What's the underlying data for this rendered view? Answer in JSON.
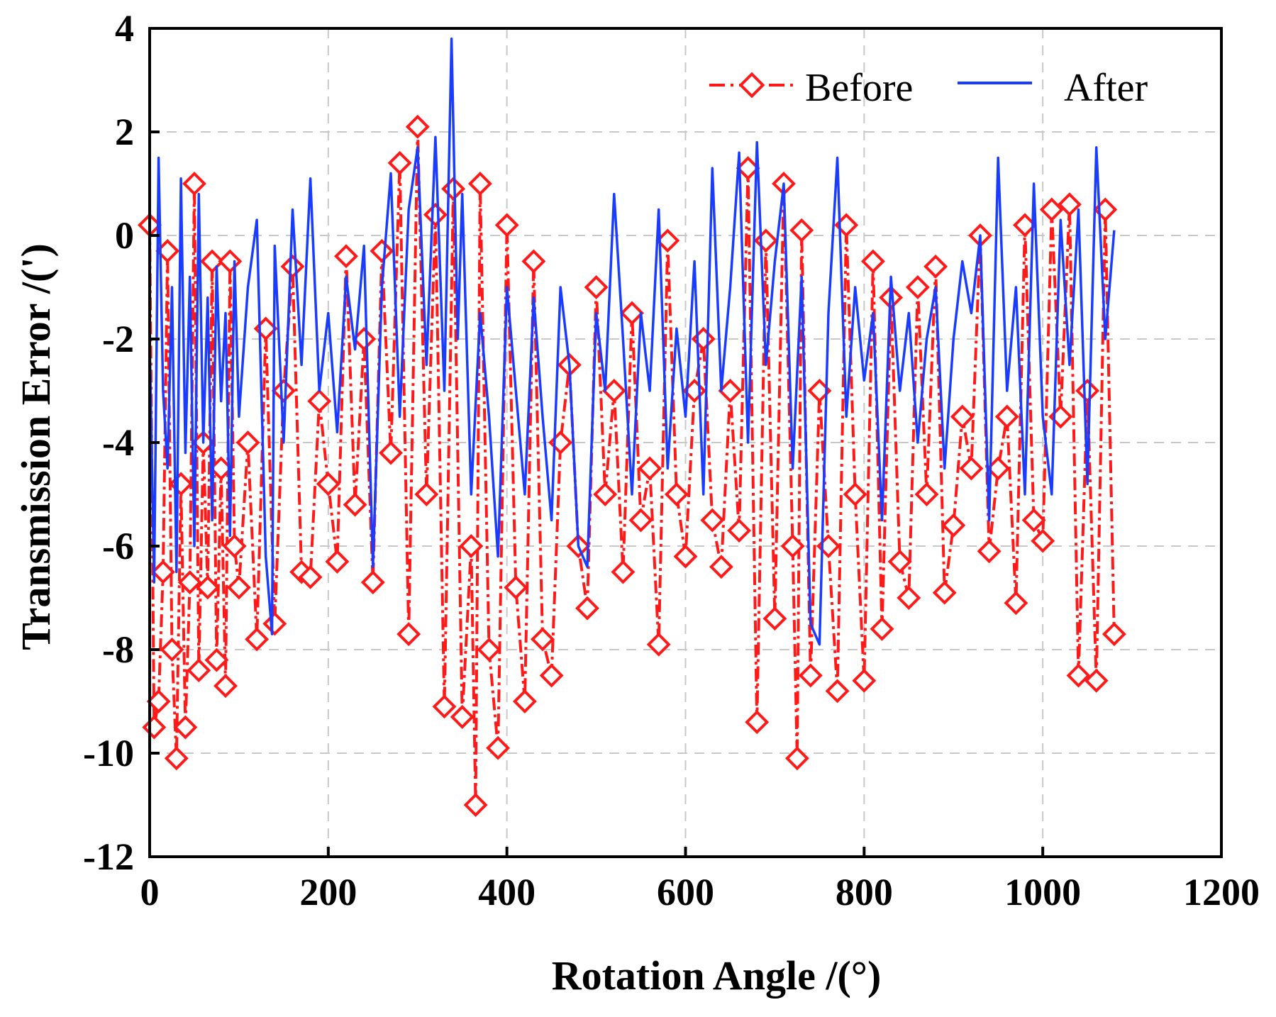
{
  "chart_data": {
    "type": "line",
    "title": "",
    "xlabel": "Rotation Angle   /(°)",
    "ylabel": "Transmission Error  /(')",
    "xlim": [
      0,
      1200
    ],
    "ylim": [
      -12,
      4
    ],
    "xticks": [
      0,
      200,
      400,
      600,
      800,
      1000,
      1200
    ],
    "yticks": [
      -12,
      -10,
      -8,
      -6,
      -4,
      -2,
      0,
      2,
      4
    ],
    "grid": true,
    "legend_position": "top-right",
    "series": [
      {
        "name": "Before",
        "color": "#ff1a1a",
        "style": "dash-dot with diamond markers",
        "x": [
          0,
          5,
          10,
          15,
          20,
          25,
          30,
          35,
          40,
          45,
          50,
          55,
          60,
          65,
          70,
          75,
          80,
          85,
          90,
          95,
          100,
          110,
          120,
          130,
          140,
          150,
          160,
          170,
          180,
          190,
          200,
          210,
          220,
          230,
          240,
          250,
          260,
          270,
          280,
          290,
          300,
          310,
          320,
          330,
          340,
          350,
          360,
          365,
          370,
          380,
          390,
          400,
          410,
          420,
          430,
          440,
          450,
          460,
          470,
          480,
          490,
          500,
          510,
          520,
          530,
          540,
          550,
          560,
          570,
          580,
          590,
          600,
          610,
          620,
          630,
          640,
          650,
          660,
          670,
          680,
          690,
          700,
          710,
          720,
          725,
          730,
          740,
          750,
          760,
          770,
          780,
          790,
          800,
          810,
          820,
          830,
          840,
          850,
          860,
          870,
          880,
          890,
          900,
          910,
          920,
          930,
          940,
          950,
          960,
          970,
          980,
          990,
          1000,
          1010,
          1020,
          1030,
          1040,
          1050,
          1060,
          1070,
          1080
        ],
        "y": [
          0.2,
          -9.5,
          -9.0,
          -6.5,
          -0.3,
          -8.0,
          -10.1,
          -4.8,
          -9.5,
          -6.7,
          1.0,
          -8.4,
          -4.0,
          -6.8,
          -0.5,
          -8.2,
          -4.5,
          -8.7,
          -0.5,
          -6.0,
          -6.8,
          -4.0,
          -7.8,
          -1.8,
          -7.5,
          -3.0,
          -0.6,
          -6.5,
          -6.6,
          -3.2,
          -4.8,
          -6.3,
          -0.4,
          -5.2,
          -2.0,
          -6.7,
          -0.3,
          -4.2,
          1.4,
          -7.7,
          2.1,
          -5.0,
          0.4,
          -9.1,
          0.9,
          -9.3,
          -6.0,
          -11.0,
          1.0,
          -8.0,
          -9.9,
          0.2,
          -6.8,
          -9.0,
          -0.5,
          -7.8,
          -8.5,
          -4.0,
          -2.5,
          -6.0,
          -7.2,
          -1.0,
          -5.0,
          -3.0,
          -6.5,
          -1.5,
          -5.5,
          -4.5,
          -7.9,
          -0.1,
          -5.0,
          -6.2,
          -3.0,
          -2.0,
          -5.5,
          -6.4,
          -3.0,
          -5.7,
          1.3,
          -9.4,
          -0.1,
          -7.4,
          1.0,
          -6.0,
          -10.1,
          0.1,
          -8.5,
          -3.0,
          -6.0,
          -8.8,
          0.2,
          -5.0,
          -8.6,
          -0.5,
          -7.6,
          -1.2,
          -6.3,
          -7.0,
          -1.0,
          -5.0,
          -0.6,
          -6.9,
          -5.6,
          -3.5,
          -4.5,
          0.0,
          -6.1,
          -4.5,
          -3.5,
          -7.1,
          0.2,
          -5.5,
          -5.9,
          0.5,
          -3.5,
          0.6,
          -8.5,
          -3.0,
          -8.6,
          0.5,
          -7.7
        ]
      },
      {
        "name": "After",
        "color": "#1a3cff",
        "style": "solid",
        "x": [
          0,
          5,
          10,
          15,
          20,
          25,
          30,
          35,
          40,
          45,
          50,
          55,
          60,
          65,
          70,
          75,
          80,
          85,
          90,
          95,
          100,
          110,
          120,
          130,
          137,
          140,
          150,
          160,
          170,
          180,
          190,
          200,
          210,
          220,
          230,
          240,
          250,
          260,
          270,
          280,
          290,
          300,
          310,
          320,
          330,
          338,
          345,
          350,
          360,
          370,
          380,
          390,
          400,
          410,
          420,
          430,
          440,
          450,
          460,
          470,
          480,
          490,
          500,
          510,
          520,
          530,
          540,
          550,
          560,
          570,
          580,
          590,
          600,
          610,
          620,
          630,
          640,
          650,
          660,
          670,
          680,
          690,
          700,
          710,
          720,
          730,
          740,
          750,
          760,
          770,
          780,
          790,
          800,
          810,
          820,
          830,
          840,
          850,
          860,
          870,
          880,
          890,
          900,
          910,
          920,
          930,
          940,
          950,
          960,
          970,
          980,
          990,
          1000,
          1010,
          1020,
          1030,
          1040,
          1050,
          1060,
          1070,
          1080
        ],
        "y": [
          -2.0,
          -6.7,
          1.5,
          -3.0,
          -4.5,
          -1.0,
          -6.5,
          1.1,
          -4.2,
          -0.8,
          -6.0,
          0.8,
          -4.0,
          -1.2,
          -5.5,
          -0.6,
          -3.2,
          -1.5,
          -5.8,
          -0.5,
          -3.5,
          -1.0,
          0.3,
          -6.2,
          -7.7,
          -0.2,
          -4.0,
          0.5,
          -2.5,
          1.1,
          -3.0,
          -1.5,
          -3.8,
          -0.8,
          -2.2,
          -0.2,
          -6.4,
          -1.0,
          1.2,
          -3.5,
          0.5,
          1.7,
          -2.5,
          1.9,
          -3.0,
          3.8,
          -2.0,
          0.8,
          -5.0,
          -1.5,
          -3.5,
          -6.2,
          -1.0,
          -3.0,
          -5.0,
          -1.2,
          -3.5,
          -5.5,
          -1.0,
          -2.5,
          -6.0,
          -6.4,
          -1.5,
          -3.0,
          0.8,
          -2.0,
          -5.0,
          -1.5,
          -3.0,
          0.5,
          -4.5,
          -1.8,
          -3.5,
          -0.5,
          -5.0,
          1.3,
          -3.0,
          -1.0,
          1.6,
          -4.0,
          1.8,
          -2.5,
          -0.5,
          1.0,
          -4.5,
          -0.8,
          -7.5,
          -7.9,
          -1.5,
          1.5,
          -3.5,
          -1.0,
          -2.8,
          -1.5,
          -5.5,
          -0.8,
          -3.0,
          -1.5,
          -4.0,
          -2.0,
          -1.0,
          -4.5,
          -2.0,
          -0.5,
          -1.5,
          0.0,
          -5.5,
          1.5,
          -3.0,
          -1.0,
          -5.0,
          1.0,
          -3.5,
          -5.0,
          0.3,
          -2.5,
          0.5,
          -4.8,
          1.7,
          -2.0,
          0.1
        ]
      }
    ]
  }
}
